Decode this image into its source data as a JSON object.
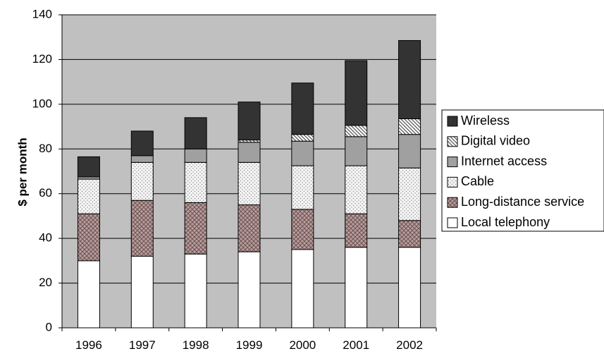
{
  "chart_data": {
    "type": "bar",
    "stacked": true,
    "title": "",
    "xlabel": "",
    "ylabel": "$ per month",
    "ylim": [
      0,
      140
    ],
    "yticks": [
      0,
      20,
      40,
      60,
      80,
      100,
      120,
      140
    ],
    "grid": true,
    "legend_position": "right",
    "plot_background": "#c0c0c0",
    "categories": [
      "1996",
      "1997",
      "1998",
      "1999",
      "2000",
      "2001",
      "2002"
    ],
    "series": [
      {
        "name": "Local telephony",
        "color": "#ffffff",
        "pattern": "solid",
        "values": [
          30,
          32,
          33,
          34,
          35,
          36,
          36
        ]
      },
      {
        "name": "Long-distance service",
        "color": "#b89e9e",
        "pattern": "crosshatch",
        "values": [
          21,
          25,
          23,
          21,
          18,
          15,
          12
        ]
      },
      {
        "name": "Cable",
        "color": "#ececec",
        "pattern": "dots",
        "values": [
          15.5,
          17,
          18,
          19,
          19.5,
          21.5,
          23.5
        ]
      },
      {
        "name": "Internet access",
        "color": "#a0a0a0",
        "pattern": "solid",
        "values": [
          1,
          3,
          6,
          9,
          11,
          13,
          15
        ]
      },
      {
        "name": "Digital video",
        "color": "#ffffff",
        "pattern": "diagonal",
        "values": [
          0,
          0,
          0,
          1,
          3,
          5,
          7
        ]
      },
      {
        "name": "Wireless",
        "color": "#333333",
        "pattern": "solid",
        "values": [
          9,
          11,
          14,
          17,
          23,
          29,
          35
        ]
      }
    ]
  }
}
